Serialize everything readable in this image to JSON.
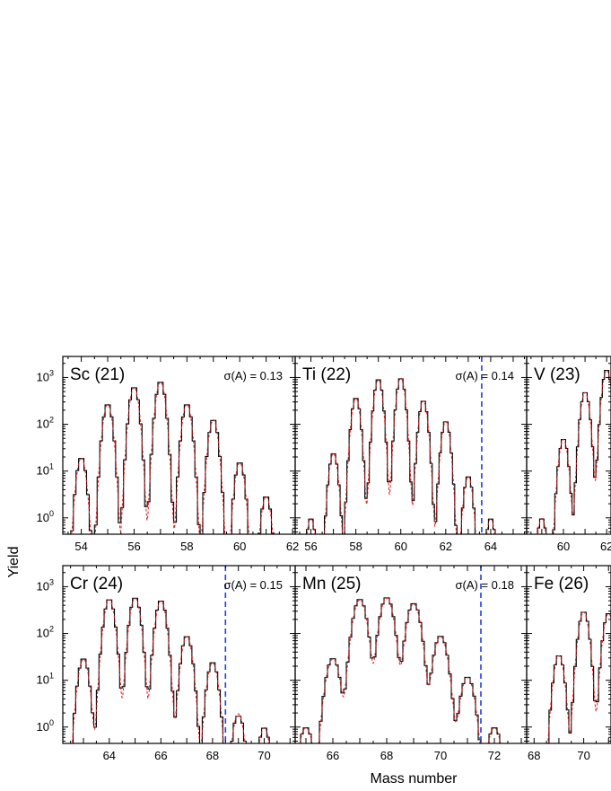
{
  "figure": {
    "xlabel": "Mass number",
    "ylabel": "Yield"
  },
  "chart_data": [
    {
      "type": "histogram",
      "title": "Sc (21)",
      "sigma": "σ(A) = 0.13",
      "xlim": [
        53.3,
        62.1
      ],
      "ylim_log10": [
        -0.35,
        3.45
      ],
      "xticks": [
        54,
        56,
        58,
        60,
        62
      ],
      "yticks": [
        "10^0",
        "10^1",
        "10^2",
        "10^3"
      ],
      "cutoff": null,
      "peaks": [
        {
          "A": 54,
          "yield": 20
        },
        {
          "A": 55,
          "yield": 280
        },
        {
          "A": 56,
          "yield": 650
        },
        {
          "A": 57,
          "yield": 850
        },
        {
          "A": 58,
          "yield": 280
        },
        {
          "A": 59,
          "yield": 130
        },
        {
          "A": 60,
          "yield": 16
        },
        {
          "A": 61,
          "yield": 3
        }
      ]
    },
    {
      "type": "histogram",
      "title": "Ti (22)",
      "sigma": "σ(A) = 0.14",
      "xlim": [
        55.3,
        65.6
      ],
      "ylim_log10": [
        -0.35,
        3.45
      ],
      "xticks": [
        56,
        58,
        60,
        62,
        64
      ],
      "yticks": [
        "10^0",
        "10^1",
        "10^2",
        "10^3"
      ],
      "cutoff": 63.6,
      "peaks": [
        {
          "A": 56,
          "yield": 1
        },
        {
          "A": 57,
          "yield": 25
        },
        {
          "A": 58,
          "yield": 380
        },
        {
          "A": 59,
          "yield": 950
        },
        {
          "A": 60,
          "yield": 1000
        },
        {
          "A": 61,
          "yield": 330
        },
        {
          "A": 62,
          "yield": 120
        },
        {
          "A": 63,
          "yield": 8
        },
        {
          "A": 64,
          "yield": 1
        }
      ]
    },
    {
      "type": "histogram",
      "title": "V (23)",
      "sigma": "",
      "xlim": [
        58.3,
        62.2
      ],
      "ylim_log10": [
        -0.35,
        3.45
      ],
      "xticks": [
        60,
        62
      ],
      "yticks": [
        "10^0",
        "10^1",
        "10^2",
        "10^3"
      ],
      "cutoff": null,
      "peaks": [
        {
          "A": 59,
          "yield": 1
        },
        {
          "A": 60,
          "yield": 50
        },
        {
          "A": 61,
          "yield": 500
        },
        {
          "A": 62,
          "yield": 1500
        }
      ]
    },
    {
      "type": "histogram",
      "title": "Cr (24)",
      "sigma": "σ(A) = 0.15",
      "xlim": [
        62.2,
        71.2
      ],
      "ylim_log10": [
        -0.35,
        3.45
      ],
      "xticks": [
        64,
        66,
        68,
        70
      ],
      "yticks": [
        "10^0",
        "10^1",
        "10^2",
        "10^3"
      ],
      "cutoff": 68.5,
      "peaks": [
        {
          "A": 63,
          "yield": 30
        },
        {
          "A": 64,
          "yield": 550
        },
        {
          "A": 65,
          "yield": 600
        },
        {
          "A": 66,
          "yield": 520
        },
        {
          "A": 67,
          "yield": 90
        },
        {
          "A": 68,
          "yield": 25
        },
        {
          "A": 69,
          "yield": 2
        },
        {
          "A": 70,
          "yield": 1
        }
      ]
    },
    {
      "type": "histogram",
      "title": "Mn (25)",
      "sigma": "σ(A) = 0.18",
      "xlim": [
        64.6,
        73.2
      ],
      "ylim_log10": [
        -0.35,
        3.45
      ],
      "xticks": [
        66,
        68,
        70,
        72
      ],
      "yticks": [
        "10^0",
        "10^1",
        "10^2",
        "10^3"
      ],
      "cutoff": 71.5,
      "peaks": [
        {
          "A": 65,
          "yield": 1
        },
        {
          "A": 66,
          "yield": 30
        },
        {
          "A": 67,
          "yield": 550
        },
        {
          "A": 68,
          "yield": 600
        },
        {
          "A": 69,
          "yield": 450
        },
        {
          "A": 70,
          "yield": 90
        },
        {
          "A": 71,
          "yield": 12
        },
        {
          "A": 72,
          "yield": 1
        }
      ]
    },
    {
      "type": "histogram",
      "title": "Fe (26)",
      "sigma": "",
      "xlim": [
        67.7,
        71.1
      ],
      "ylim_log10": [
        -0.35,
        3.45
      ],
      "xticks": [
        68,
        70
      ],
      "yticks": [
        "10^0",
        "10^1",
        "10^2",
        "10^3"
      ],
      "cutoff": null,
      "peaks": [
        {
          "A": 69,
          "yield": 35
        },
        {
          "A": 70,
          "yield": 300
        },
        {
          "A": 71,
          "yield": 280
        }
      ]
    }
  ]
}
